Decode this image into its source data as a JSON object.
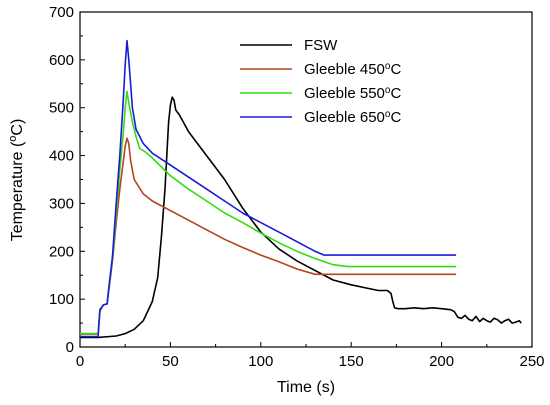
{
  "chart_data": {
    "type": "line",
    "xlabel": "Time (s)",
    "ylabel_main": "Temperature (",
    "ylabel_sup": "o",
    "ylabel_tail": "C)",
    "xlim": [
      0,
      250
    ],
    "ylim": [
      0,
      700
    ],
    "x_ticks": [
      0,
      50,
      100,
      150,
      200,
      250
    ],
    "y_ticks": [
      0,
      100,
      200,
      300,
      400,
      500,
      600,
      700
    ],
    "x_tick_labels": [
      "0",
      "50",
      "100",
      "150",
      "200",
      "250"
    ],
    "y_tick_labels": [
      "0",
      "100",
      "200",
      "300",
      "400",
      "500",
      "600",
      "700"
    ],
    "grid": false,
    "legend_position": "top-right",
    "series": [
      {
        "name": "FSW",
        "legend_main": "FSW",
        "legend_sup": "",
        "legend_tail": "",
        "color": "#000000",
        "points": [
          [
            0,
            20
          ],
          [
            10,
            20
          ],
          [
            20,
            23
          ],
          [
            25,
            28
          ],
          [
            30,
            37
          ],
          [
            35,
            55
          ],
          [
            40,
            95
          ],
          [
            43,
            145
          ],
          [
            45,
            230
          ],
          [
            47,
            330
          ],
          [
            48,
            400
          ],
          [
            49,
            470
          ],
          [
            50,
            505
          ],
          [
            51,
            522
          ],
          [
            52,
            516
          ],
          [
            53,
            495
          ],
          [
            55,
            485
          ],
          [
            60,
            450
          ],
          [
            70,
            400
          ],
          [
            80,
            350
          ],
          [
            90,
            290
          ],
          [
            100,
            240
          ],
          [
            110,
            205
          ],
          [
            120,
            180
          ],
          [
            130,
            160
          ],
          [
            140,
            140
          ],
          [
            150,
            130
          ],
          [
            160,
            122
          ],
          [
            165,
            118
          ],
          [
            170,
            118
          ],
          [
            172,
            112
          ],
          [
            173,
            95
          ],
          [
            174,
            82
          ],
          [
            176,
            80
          ],
          [
            180,
            80
          ],
          [
            185,
            82
          ],
          [
            190,
            80
          ],
          [
            195,
            82
          ],
          [
            200,
            80
          ],
          [
            205,
            78
          ],
          [
            207,
            74
          ],
          [
            209,
            62
          ],
          [
            211,
            60
          ],
          [
            213,
            66
          ],
          [
            215,
            58
          ],
          [
            217,
            55
          ],
          [
            219,
            64
          ],
          [
            221,
            53
          ],
          [
            223,
            60
          ],
          [
            225,
            55
          ],
          [
            227,
            52
          ],
          [
            229,
            60
          ],
          [
            231,
            57
          ],
          [
            233,
            50
          ],
          [
            235,
            55
          ],
          [
            237,
            58
          ],
          [
            239,
            50
          ],
          [
            241,
            52
          ],
          [
            243,
            55
          ],
          [
            244,
            50
          ]
        ]
      },
      {
        "name": "Gleeble 450°C",
        "legend_main": "Gleeble 450",
        "legend_sup": "o",
        "legend_tail": "C",
        "color": "#b0451f",
        "points": [
          [
            0,
            27
          ],
          [
            10,
            27
          ],
          [
            11,
            75
          ],
          [
            13,
            88
          ],
          [
            15,
            90
          ],
          [
            16,
            120
          ],
          [
            18,
            180
          ],
          [
            20,
            260
          ],
          [
            22,
            330
          ],
          [
            24,
            390
          ],
          [
            25,
            420
          ],
          [
            26,
            436
          ],
          [
            27,
            425
          ],
          [
            28,
            390
          ],
          [
            30,
            350
          ],
          [
            35,
            320
          ],
          [
            40,
            305
          ],
          [
            50,
            285
          ],
          [
            60,
            265
          ],
          [
            70,
            245
          ],
          [
            80,
            225
          ],
          [
            90,
            208
          ],
          [
            100,
            192
          ],
          [
            110,
            178
          ],
          [
            120,
            163
          ],
          [
            130,
            152
          ],
          [
            150,
            152
          ],
          [
            208,
            152
          ]
        ]
      },
      {
        "name": "Gleeble 550°C",
        "legend_main": "Gleeble 550",
        "legend_sup": "o",
        "legend_tail": "C",
        "color": "#33dd11",
        "points": [
          [
            0,
            28
          ],
          [
            10,
            28
          ],
          [
            11,
            78
          ],
          [
            13,
            88
          ],
          [
            15,
            90
          ],
          [
            16,
            125
          ],
          [
            18,
            185
          ],
          [
            20,
            280
          ],
          [
            22,
            370
          ],
          [
            24,
            450
          ],
          [
            25,
            500
          ],
          [
            26,
            534
          ],
          [
            27,
            510
          ],
          [
            29,
            470
          ],
          [
            31,
            440
          ],
          [
            33,
            415
          ],
          [
            36,
            408
          ],
          [
            40,
            395
          ],
          [
            50,
            358
          ],
          [
            60,
            330
          ],
          [
            70,
            305
          ],
          [
            80,
            280
          ],
          [
            90,
            260
          ],
          [
            100,
            238
          ],
          [
            110,
            218
          ],
          [
            120,
            200
          ],
          [
            130,
            185
          ],
          [
            140,
            172
          ],
          [
            148,
            168
          ],
          [
            208,
            168
          ]
        ]
      },
      {
        "name": "Gleeble 650°C",
        "legend_main": "Gleeble 650",
        "legend_sup": "o",
        "legend_tail": "C",
        "color": "#1a1add",
        "points": [
          [
            0,
            22
          ],
          [
            10,
            22
          ],
          [
            11,
            78
          ],
          [
            13,
            88
          ],
          [
            15,
            90
          ],
          [
            16,
            125
          ],
          [
            18,
            190
          ],
          [
            20,
            300
          ],
          [
            22,
            400
          ],
          [
            24,
            520
          ],
          [
            25,
            590
          ],
          [
            26,
            640
          ],
          [
            27,
            600
          ],
          [
            29,
            500
          ],
          [
            31,
            455
          ],
          [
            35,
            425
          ],
          [
            40,
            405
          ],
          [
            50,
            380
          ],
          [
            60,
            355
          ],
          [
            70,
            330
          ],
          [
            80,
            305
          ],
          [
            90,
            280
          ],
          [
            100,
            260
          ],
          [
            110,
            240
          ],
          [
            120,
            220
          ],
          [
            130,
            200
          ],
          [
            135,
            192
          ],
          [
            208,
            192
          ]
        ]
      }
    ]
  }
}
